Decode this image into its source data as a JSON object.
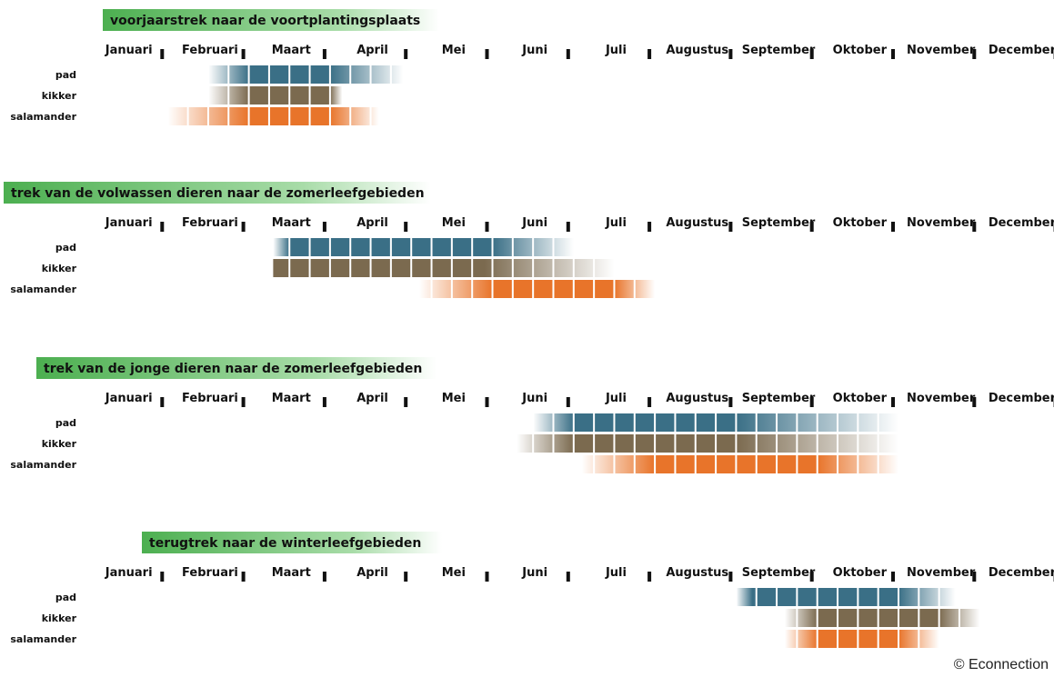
{
  "chart_data": {
    "type": "timeline",
    "months": [
      "Januari",
      "Februari",
      "Maart",
      "April",
      "Mei",
      "Juni",
      "Juli",
      "Augustus",
      "September",
      "Oktober",
      "November",
      "December"
    ],
    "series_names": [
      "pad",
      "kikker",
      "salamander"
    ],
    "colors": {
      "pad": "#3a6f86",
      "kikker": "#7b6a4f",
      "salamander": "#e8742a",
      "title_green": "#4caf50"
    },
    "panels": [
      {
        "title": "voorjaarstrek naar de voortplantingsplaats",
        "rows": [
          {
            "name": "pad",
            "start": 1.5,
            "peak_start": 2.0,
            "peak_end": 3.0,
            "end": 3.9
          },
          {
            "name": "kikker",
            "start": 1.5,
            "peak_start": 2.0,
            "peak_end": 3.0,
            "end": 3.15
          },
          {
            "name": "salamander",
            "start": 1.0,
            "peak_start": 2.0,
            "peak_end": 3.0,
            "end": 3.6
          }
        ]
      },
      {
        "title": "trek van de volwassen dieren naar de zomerleefgebieden",
        "rows": [
          {
            "name": "pad",
            "start": 2.3,
            "peak_start": 2.5,
            "peak_end": 5.0,
            "end": 6.0
          },
          {
            "name": "kikker",
            "start": 2.3,
            "peak_start": 2.3,
            "peak_end": 4.9,
            "end": 6.5
          },
          {
            "name": "salamander",
            "start": 4.1,
            "peak_start": 5.0,
            "peak_end": 6.5,
            "end": 7.0
          }
        ]
      },
      {
        "title": "trek van de jonge dieren naar de zomerleefgebieden",
        "rows": [
          {
            "name": "pad",
            "start": 5.5,
            "peak_start": 6.0,
            "peak_end": 8.0,
            "end": 10.0
          },
          {
            "name": "kikker",
            "start": 5.3,
            "peak_start": 6.0,
            "peak_end": 8.0,
            "end": 10.0
          },
          {
            "name": "salamander",
            "start": 6.1,
            "peak_start": 7.0,
            "peak_end": 9.0,
            "end": 10.0
          }
        ]
      },
      {
        "title": "terugtrek naar de winterleefgebieden",
        "rows": [
          {
            "name": "pad",
            "start": 8.0,
            "peak_start": 8.2,
            "peak_end": 10.0,
            "end": 10.7
          },
          {
            "name": "kikker",
            "start": 8.6,
            "peak_start": 9.0,
            "peak_end": 10.5,
            "end": 11.0
          },
          {
            "name": "salamander",
            "start": 8.6,
            "peak_start": 9.0,
            "peak_end": 10.0,
            "end": 10.5
          }
        ]
      }
    ]
  },
  "footer": {
    "copyright": "© Econnection"
  }
}
